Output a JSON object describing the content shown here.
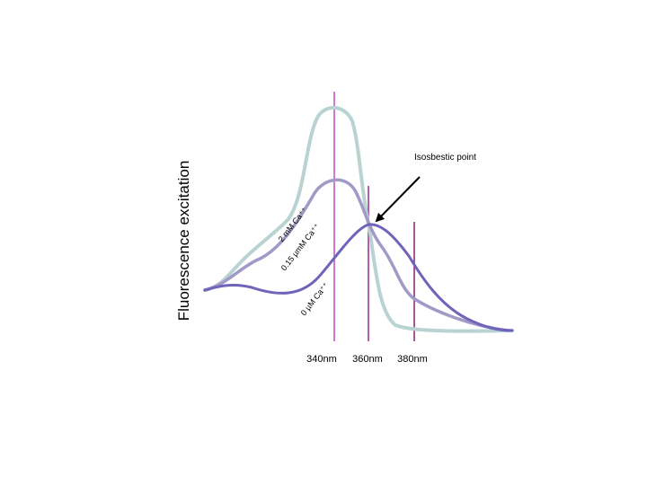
{
  "axis_label": "Fluorescence excitation",
  "annotation": "Isosbestic point",
  "wavelengths": [
    "340nm",
    "360nm",
    "380nm"
  ],
  "curves": [
    {
      "label": "2 mM Ca⁺⁺"
    },
    {
      "label": "0.15 µmM Ca⁺⁺"
    },
    {
      "label": "0 µM Ca⁺⁺"
    }
  ]
}
